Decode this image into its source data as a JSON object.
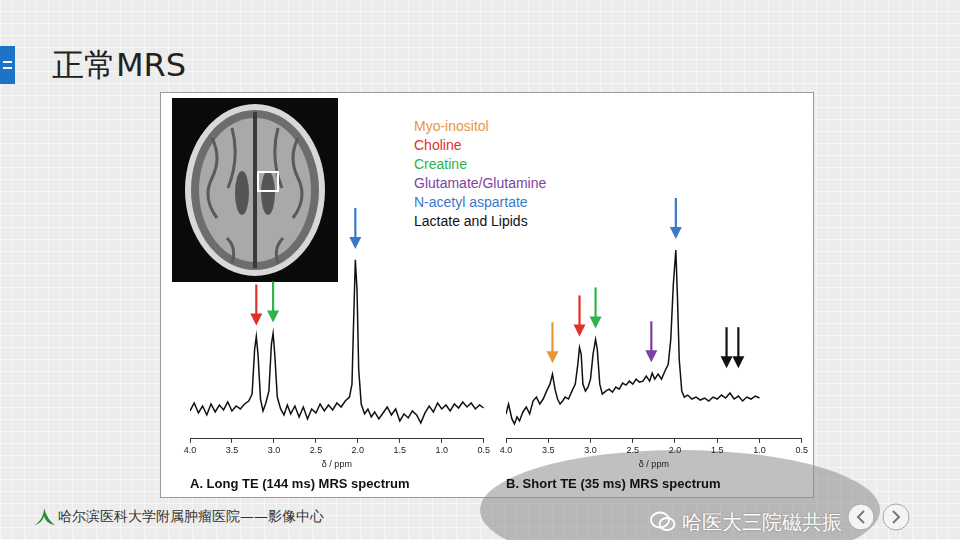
{
  "title": "正常MRS",
  "metabolites": [
    {
      "name": "Myo-inositol",
      "color": "#e8963a"
    },
    {
      "name": "Choline",
      "color": "#e0302a"
    },
    {
      "name": "Creatine",
      "color": "#2fb34c"
    },
    {
      "name": "Glutamate/Glutamine",
      "color": "#7d3fa3"
    },
    {
      "name": "N-acetyl aspartate",
      "color": "#3a78c8"
    },
    {
      "name": "Lactate and Lipids",
      "color": "#111111"
    }
  ],
  "chart_data": [
    {
      "type": "line",
      "title": "A. Long TE (144 ms) MRS spectrum",
      "x_label": "δ / ppm",
      "color": "#111111",
      "x": [
        4.0,
        3.95,
        3.9,
        3.85,
        3.8,
        3.75,
        3.7,
        3.65,
        3.6,
        3.55,
        3.5,
        3.45,
        3.4,
        3.35,
        3.3,
        3.26,
        3.23,
        3.21,
        3.19,
        3.16,
        3.13,
        3.1,
        3.06,
        3.03,
        3.01,
        2.99,
        2.96,
        2.92,
        2.88,
        2.84,
        2.8,
        2.75,
        2.7,
        2.65,
        2.6,
        2.55,
        2.5,
        2.45,
        2.4,
        2.35,
        2.3,
        2.25,
        2.2,
        2.15,
        2.1,
        2.07,
        2.05,
        2.03,
        2.01,
        1.99,
        1.96,
        1.92,
        1.88,
        1.84,
        1.8,
        1.75,
        1.7,
        1.65,
        1.6,
        1.55,
        1.5,
        1.45,
        1.4,
        1.35,
        1.3,
        1.25,
        1.2,
        1.15,
        1.1,
        1.05,
        1.0,
        0.95,
        0.9,
        0.85,
        0.8,
        0.75,
        0.7,
        0.65,
        0.6,
        0.55,
        0.5
      ],
      "values": [
        -2,
        6,
        -4,
        3,
        -6,
        5,
        -3,
        4,
        -1,
        7,
        -2,
        3,
        0,
        5,
        8,
        15,
        60,
        73,
        55,
        10,
        -2,
        5,
        18,
        65,
        76,
        55,
        12,
        0,
        -6,
        4,
        -5,
        3,
        -8,
        2,
        -10,
        0,
        -4,
        5,
        -2,
        4,
        -1,
        6,
        2,
        8,
        12,
        25,
        90,
        150,
        120,
        40,
        5,
        -5,
        0,
        -8,
        -3,
        -10,
        -4,
        2,
        -6,
        0,
        -12,
        -5,
        -9,
        -2,
        -6,
        -14,
        -4,
        3,
        -3,
        6,
        0,
        4,
        -2,
        5,
        1,
        7,
        2,
        6,
        0,
        4,
        1
      ],
      "xlim": [
        4,
        0.5
      ],
      "xticks": [
        {
          "value": 4,
          "label": "4.0"
        },
        3.5,
        {
          "value": 3,
          "label": "3.0"
        },
        2.5,
        {
          "value": 2,
          "label": "2.0"
        },
        1.5,
        {
          "value": 1,
          "label": "1.0"
        },
        0.5
      ],
      "ylim": [
        -30,
        170
      ],
      "grid": false,
      "tick_labels": "x",
      "arrows": [
        {
          "x": 3.21,
          "y": 83,
          "color": "#e0302a"
        },
        {
          "x": 3.01,
          "y": 86,
          "color": "#2fb34c"
        },
        {
          "x": 2.03,
          "y": 160,
          "color": "#3a78c8"
        }
      ]
    },
    {
      "type": "line",
      "title": "B. Short TE (35 ms) MRS spectrum",
      "x_label": "δ / ppm",
      "color": "#111111",
      "x": [
        4.0,
        3.97,
        3.93,
        3.9,
        3.87,
        3.84,
        3.8,
        3.76,
        3.72,
        3.68,
        3.64,
        3.6,
        3.56,
        3.52,
        3.48,
        3.45,
        3.42,
        3.39,
        3.36,
        3.33,
        3.3,
        3.26,
        3.22,
        3.18,
        3.15,
        3.13,
        3.11,
        3.09,
        3.06,
        3.03,
        3.0,
        2.97,
        2.94,
        2.92,
        2.89,
        2.86,
        2.82,
        2.78,
        2.74,
        2.7,
        2.66,
        2.62,
        2.58,
        2.54,
        2.5,
        2.46,
        2.42,
        2.38,
        2.34,
        2.3,
        2.27,
        2.24,
        2.2,
        2.16,
        2.12,
        2.08,
        2.05,
        2.02,
        1.99,
        1.97,
        1.95,
        1.92,
        1.89,
        1.85,
        1.8,
        1.75,
        1.7,
        1.65,
        1.6,
        1.55,
        1.5,
        1.45,
        1.4,
        1.35,
        1.3,
        1.25,
        1.2,
        1.15,
        1.1,
        1.05,
        1.0
      ],
      "values": [
        -5,
        5,
        -10,
        -15,
        -8,
        -12,
        -3,
        2,
        -5,
        8,
        12,
        5,
        10,
        18,
        25,
        35,
        20,
        10,
        5,
        8,
        12,
        10,
        18,
        25,
        45,
        62,
        55,
        25,
        18,
        22,
        30,
        55,
        70,
        60,
        25,
        15,
        18,
        20,
        17,
        22,
        20,
        26,
        24,
        28,
        25,
        30,
        27,
        28,
        33,
        28,
        36,
        30,
        35,
        30,
        38,
        45,
        70,
        125,
        160,
        110,
        50,
        18,
        12,
        14,
        10,
        12,
        9,
        11,
        8,
        12,
        10,
        14,
        11,
        16,
        10,
        13,
        8,
        12,
        10,
        13,
        11
      ],
      "xlim": [
        4,
        0.5
      ],
      "xticks": [
        {
          "value": 4,
          "label": "4.0"
        },
        3.5,
        {
          "value": 3,
          "label": "3.0"
        },
        2.5,
        {
          "value": 2,
          "label": "2.0"
        },
        1.5,
        {
          "value": 1,
          "label": "1.0"
        },
        0.5
      ],
      "ylim": [
        -30,
        170
      ],
      "grid": false,
      "tick_labels": "x",
      "arrows": [
        {
          "x": 3.45,
          "y": 45,
          "color": "#e8963a"
        },
        {
          "x": 3.13,
          "y": 72,
          "color": "#e0302a"
        },
        {
          "x": 2.94,
          "y": 80,
          "color": "#2fb34c"
        },
        {
          "x": 2.28,
          "y": 46,
          "color": "#7d3fa3"
        },
        {
          "x": 1.99,
          "y": 170,
          "color": "#3a78c8"
        },
        {
          "x": 1.39,
          "y": 40,
          "color": "#111111"
        },
        {
          "x": 1.25,
          "y": 40,
          "color": "#111111"
        }
      ]
    }
  ],
  "footer": "哈尔滨医科大学附属肿瘤医院——影像中心",
  "watermark": "哈医大三院磁共振"
}
